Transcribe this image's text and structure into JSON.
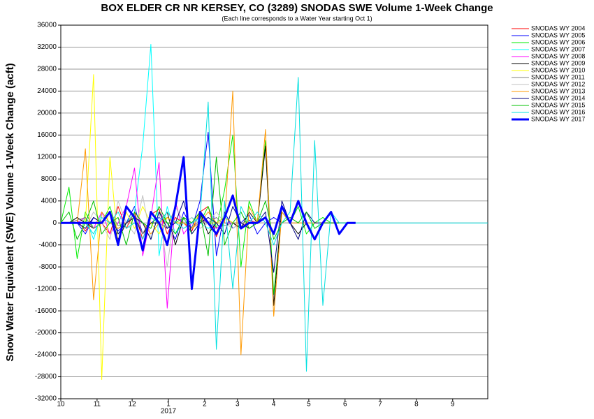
{
  "chart_data": {
    "type": "line",
    "title": "BOX ELDER CR NR KERSEY, CO (3289) SNODAS SWE Volume 1-Week Change",
    "subtitle": "(Each line corresponds to a Water Year starting Oct 1)",
    "y_label": "Snow Water Equivalent (SWE) Volume 1-Week Change (acft)",
    "x_year_label": {
      "value": 92,
      "label": "2017"
    },
    "xlim": [
      0,
      365
    ],
    "xticks": [
      {
        "value": 0,
        "label": "10"
      },
      {
        "value": 31,
        "label": "11"
      },
      {
        "value": 61,
        "label": "12"
      },
      {
        "value": 92,
        "label": "1"
      },
      {
        "value": 123,
        "label": "2"
      },
      {
        "value": 151,
        "label": "3"
      },
      {
        "value": 182,
        "label": "4"
      },
      {
        "value": 212,
        "label": "5"
      },
      {
        "value": 243,
        "label": "6"
      },
      {
        "value": 273,
        "label": "7"
      },
      {
        "value": 304,
        "label": "8"
      },
      {
        "value": 335,
        "label": "9"
      }
    ],
    "ylim": [
      -32000,
      36000
    ],
    "yticks": [
      -32000,
      -28000,
      -24000,
      -20000,
      -16000,
      -12000,
      -8000,
      -4000,
      0,
      4000,
      8000,
      12000,
      16000,
      20000,
      24000,
      28000,
      32000,
      36000
    ],
    "grid": true,
    "legend": "outside-right",
    "x": [
      0,
      7,
      14,
      21,
      28,
      35,
      42,
      49,
      56,
      63,
      70,
      77,
      84,
      91,
      98,
      105,
      112,
      119,
      126,
      133,
      140,
      147,
      154,
      161,
      168,
      175,
      182,
      189,
      196,
      203,
      210,
      217,
      224,
      231,
      238,
      245,
      252,
      365
    ],
    "series": [
      {
        "name": "SNODAS WY 2004",
        "color": "#ff0000",
        "values": [
          0,
          0,
          500,
          -1500,
          1000,
          0,
          -2000,
          3000,
          -1000,
          2000,
          -3000,
          1500,
          2500,
          -2000,
          1000,
          0,
          -1500,
          2000,
          3000,
          -2500,
          1000,
          0,
          -1000,
          500,
          0,
          0,
          0,
          0,
          0,
          0,
          0,
          0,
          0,
          0,
          0,
          0,
          0,
          null
        ]
      },
      {
        "name": "SNODAS WY 2005",
        "color": "#0000ff",
        "values": [
          0,
          0,
          0,
          -2000,
          1000,
          0,
          2000,
          -1500,
          0,
          3000,
          -2000,
          0,
          1000,
          0,
          -3000,
          2000,
          -1000,
          4000,
          16500,
          -6000,
          2000,
          -1000,
          0,
          1500,
          -2000,
          0,
          1000,
          0,
          0,
          0,
          0,
          0,
          0,
          0,
          0,
          0,
          0,
          null
        ]
      },
      {
        "name": "SNODAS WY 2006",
        "color": "#00ee00",
        "values": [
          0,
          6500,
          -6500,
          2000,
          -1000,
          0,
          3000,
          -2000,
          0,
          1000,
          0,
          -3000,
          2000,
          0,
          0,
          1000,
          -2000,
          0,
          3000,
          -1000,
          6000,
          16000,
          -8000,
          4000,
          0,
          15000,
          -13000,
          2000,
          0,
          3000,
          -2000,
          0,
          1000,
          0,
          0,
          0,
          0,
          null
        ]
      },
      {
        "name": "SNODAS WY 2007",
        "color": "#00ffff",
        "values": [
          0,
          0,
          0,
          1000,
          -3000,
          2000,
          0,
          -1000,
          0,
          2000,
          14000,
          32500,
          -6000,
          3000,
          -2000,
          0,
          1000,
          0,
          -1000,
          0,
          0,
          0,
          0,
          0,
          0,
          0,
          0,
          0,
          0,
          0,
          0,
          0,
          0,
          0,
          0,
          0,
          0,
          null
        ]
      },
      {
        "name": "SNODAS WY 2008",
        "color": "#ff00ff",
        "values": [
          0,
          0,
          0,
          1000,
          -1000,
          2000,
          -2000,
          0,
          3000,
          10000,
          -6000,
          1000,
          11000,
          -15500,
          4000,
          -2000,
          0,
          1000,
          0,
          -1000,
          0,
          0,
          0,
          0,
          0,
          0,
          0,
          0,
          0,
          0,
          0,
          0,
          0,
          0,
          0,
          0,
          0,
          null
        ]
      },
      {
        "name": "SNODAS WY 2009",
        "color": "#000000",
        "values": [
          0,
          0,
          1000,
          0,
          -1000,
          0,
          2000,
          -3000,
          0,
          1000,
          -2000,
          0,
          0,
          2000,
          -4000,
          1000,
          0,
          2000,
          -2000,
          0,
          1000,
          0,
          -1000,
          2000,
          0,
          14000,
          -15000,
          3000,
          0,
          -2000,
          0,
          0,
          0,
          0,
          0,
          0,
          0,
          null
        ]
      },
      {
        "name": "SNODAS WY 2010",
        "color": "#ffff00",
        "values": [
          0,
          0,
          0,
          0,
          27000,
          -28500,
          12000,
          -4000,
          2000,
          -1000,
          3000,
          0,
          -2000,
          1000,
          0,
          0,
          -1000,
          2000,
          0,
          0,
          1000,
          0,
          0,
          0,
          0,
          0,
          0,
          0,
          0,
          0,
          0,
          0,
          0,
          0,
          0,
          0,
          0,
          null
        ]
      },
      {
        "name": "SNODAS WY 2011",
        "color": "#808080",
        "values": [
          0,
          0,
          500,
          1000,
          -1000,
          0,
          2000,
          -500,
          0,
          1500,
          -2000,
          1000,
          0,
          -1000,
          3000,
          0,
          -1000,
          500,
          0,
          1000,
          -500,
          0,
          0,
          0,
          0,
          0,
          0,
          0,
          0,
          0,
          0,
          0,
          0,
          0,
          0,
          0,
          0,
          null
        ]
      },
      {
        "name": "SNODAS WY 2012",
        "color": "#c0c0c0",
        "values": [
          0,
          0,
          0,
          -1000,
          2000,
          0,
          -3000,
          4000,
          0,
          -2000,
          5000,
          -3000,
          2000,
          -8000,
          3000,
          0,
          1000,
          -1000,
          0,
          2000,
          0,
          -1000,
          0,
          0,
          0,
          0,
          0,
          0,
          0,
          0,
          0,
          0,
          0,
          0,
          0,
          0,
          0,
          null
        ]
      },
      {
        "name": "SNODAS WY 2013",
        "color": "#ff9900",
        "values": [
          0,
          0,
          0,
          13500,
          -14000,
          2000,
          0,
          -1000,
          0,
          1000,
          0,
          -2000,
          0,
          1000,
          0,
          0,
          -1000,
          0,
          2000,
          0,
          0,
          24000,
          -24000,
          3000,
          0,
          17000,
          -17000,
          2000,
          0,
          0,
          0,
          0,
          0,
          0,
          0,
          0,
          0,
          null
        ]
      },
      {
        "name": "SNODAS WY 2014",
        "color": "#000080",
        "values": [
          0,
          0,
          0,
          -1000,
          1000,
          0,
          2000,
          -2000,
          0,
          1000,
          0,
          -3000,
          2000,
          -1000,
          0,
          4000,
          -2000,
          0,
          1000,
          0,
          -2000,
          3000,
          0,
          -1000,
          0,
          2000,
          -9000,
          4000,
          0,
          -3000,
          2000,
          0,
          0,
          0,
          0,
          0,
          0,
          null
        ]
      },
      {
        "name": "SNODAS WY 2015",
        "color": "#00c000",
        "values": [
          0,
          2000,
          -3000,
          0,
          4000,
          -2000,
          0,
          1000,
          -4000,
          2000,
          0,
          -1000,
          3000,
          0,
          -2000,
          1000,
          0,
          2000,
          -6000,
          12000,
          -4000,
          0,
          2000,
          -1000,
          0,
          4000,
          -3000,
          0,
          1000,
          0,
          2000,
          -1000,
          0,
          0,
          0,
          0,
          0,
          null
        ]
      },
      {
        "name": "SNODAS WY 2016",
        "color": "#00e0e0",
        "values": [
          0,
          0,
          0,
          0,
          -2000,
          1000,
          0,
          2000,
          -1000,
          0,
          -3000,
          1000,
          0,
          2000,
          0,
          -1000,
          0,
          1000,
          22000,
          -23000,
          4000,
          -12000,
          3000,
          0,
          2000,
          0,
          -4000,
          0,
          2000,
          26500,
          -27000,
          15000,
          -15000,
          2000,
          0,
          0,
          0,
          0
        ]
      },
      {
        "name": "SNODAS WY 2017",
        "color": "#0000ff",
        "linewidth": 3,
        "values": [
          0,
          0,
          0,
          0,
          0,
          0,
          2000,
          -4000,
          3000,
          1000,
          -5000,
          2000,
          0,
          -4000,
          3000,
          12000,
          -12000,
          2000,
          0,
          -2000,
          1000,
          5000,
          -1000,
          0,
          0,
          1000,
          -2000,
          3000,
          0,
          4000,
          0,
          -3000,
          0,
          2000,
          -2000,
          0,
          0,
          null
        ]
      }
    ]
  }
}
